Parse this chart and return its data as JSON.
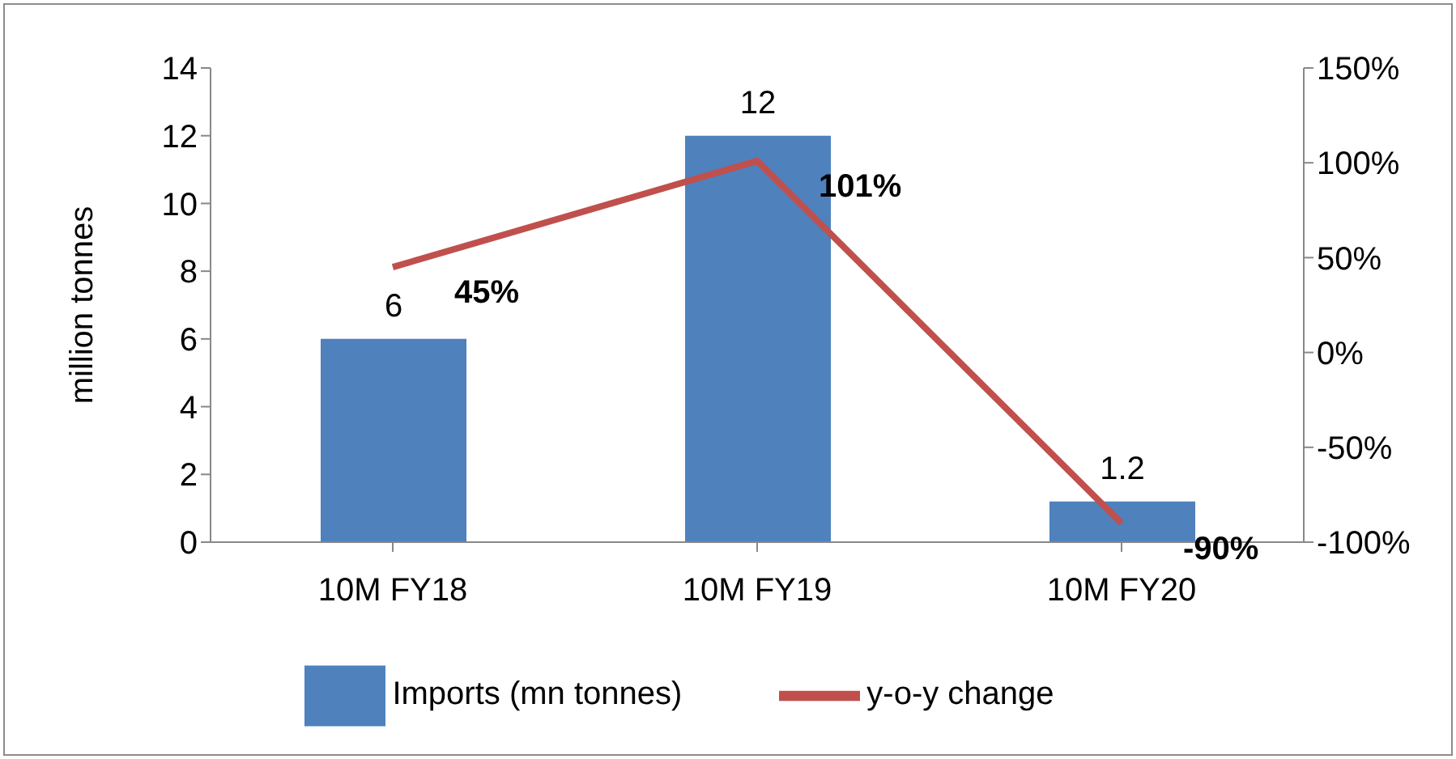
{
  "chart_data": {
    "type": "bar",
    "ylabel": "million tonnes",
    "categories": [
      "10M FY18",
      "10M FY19",
      "10M FY20"
    ],
    "series": [
      {
        "name": "Imports (mn tonnes)",
        "color": "#4f81bd",
        "values": [
          6,
          12,
          1.2
        ],
        "value_labels": [
          "6",
          "12",
          "1.2"
        ]
      },
      {
        "name": "y-o-y change",
        "type": "line",
        "axis": "y2",
        "color": "#c0504d",
        "values": [
          45,
          101,
          -90
        ],
        "value_labels": [
          "45%",
          "101%",
          "-90%"
        ]
      }
    ],
    "ylim": [
      0,
      14
    ],
    "yticks": [
      0,
      2,
      4,
      6,
      8,
      10,
      12,
      14
    ],
    "y2lim": [
      -100,
      150
    ],
    "y2ticks": [
      {
        "value": -100,
        "label": "-100%"
      },
      {
        "value": -50,
        "label": "-50%"
      },
      {
        "value": 0,
        "label": "0%"
      },
      {
        "value": 50,
        "label": "50%"
      },
      {
        "value": 100,
        "label": "100%"
      },
      {
        "value": 150,
        "label": "150%"
      }
    ],
    "grid": false,
    "legend": "bottom",
    "marker": "none"
  }
}
